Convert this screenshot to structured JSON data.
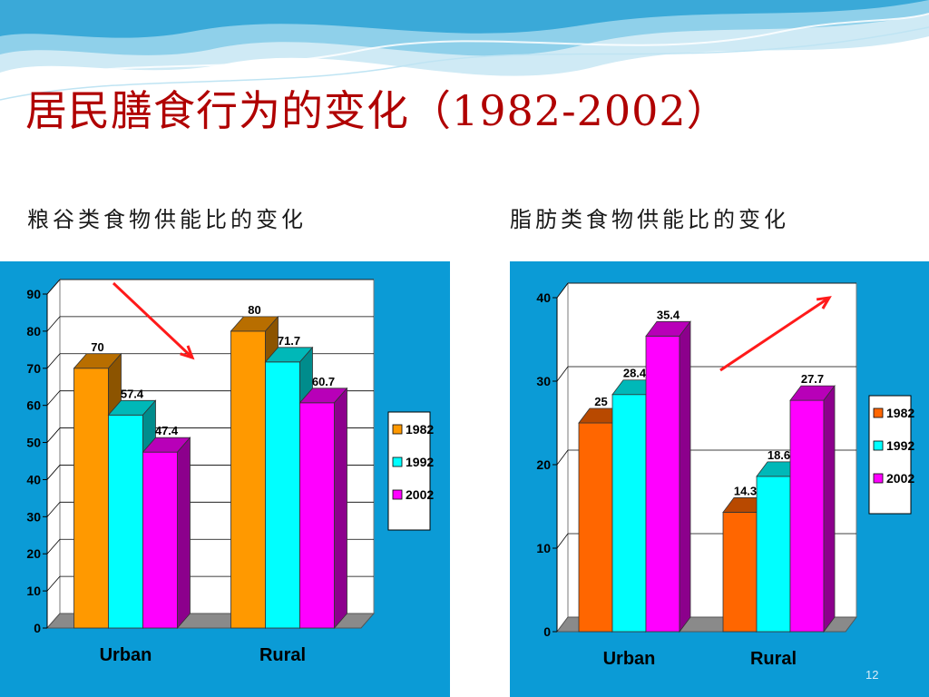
{
  "slide": {
    "title": "居民膳食行为的变化（1982-2002）",
    "page_number": "12"
  },
  "colors": {
    "panel_bg": "#0b9bd6",
    "title": "#b00000",
    "arrow": "#ff1a1a"
  },
  "chart_data": [
    {
      "type": "bar",
      "title": "粮谷类食物供能比的变化",
      "categories": [
        "Urban",
        "Rural"
      ],
      "series": [
        {
          "name": "1982",
          "values": [
            70,
            80
          ],
          "color": "#ff9900"
        },
        {
          "name": "1992",
          "values": [
            57.4,
            71.7
          ],
          "color": "#00ffff"
        },
        {
          "name": "2002",
          "values": [
            47.4,
            60.7
          ],
          "color": "#ff00ff"
        }
      ],
      "data_labels": [
        [
          "70",
          "80"
        ],
        [
          "57.4",
          "71.7"
        ],
        [
          "47.4",
          "60.7"
        ]
      ],
      "ylim": [
        0,
        90
      ],
      "yticks": [
        0,
        10,
        20,
        30,
        40,
        50,
        60,
        70,
        80,
        90
      ],
      "grid": true,
      "legend_position": "right",
      "trend_arrow": "down"
    },
    {
      "type": "bar",
      "title": "脂肪类食物供能比的变化",
      "categories": [
        "Urban",
        "Rural"
      ],
      "series": [
        {
          "name": "1982",
          "values": [
            25,
            14.3
          ],
          "color": "#ff6600"
        },
        {
          "name": "1992",
          "values": [
            28.4,
            18.6
          ],
          "color": "#00ffff"
        },
        {
          "name": "2002",
          "values": [
            35.4,
            27.7
          ],
          "color": "#ff00ff"
        }
      ],
      "data_labels": [
        [
          "25",
          "14.3"
        ],
        [
          "28.4",
          "18.6"
        ],
        [
          "35.4",
          "27.7"
        ]
      ],
      "ylim": [
        0,
        40
      ],
      "yticks": [
        0,
        10,
        20,
        30,
        40
      ],
      "grid": true,
      "legend_position": "right",
      "trend_arrow": "up"
    }
  ]
}
